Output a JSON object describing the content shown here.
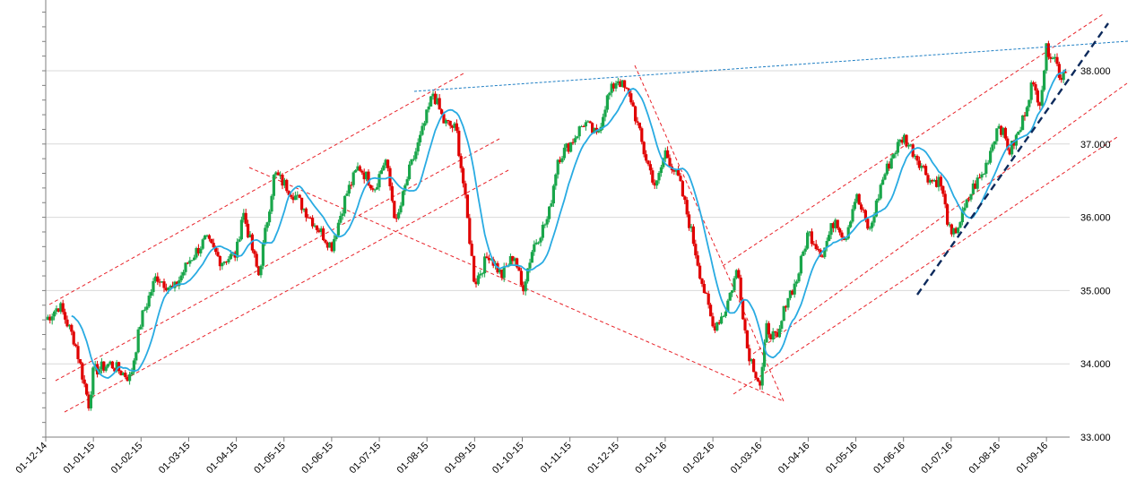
{
  "chart_data": {
    "type": "candlestick",
    "title": "",
    "xlabel": "",
    "ylabel": "",
    "ylim": [
      33000,
      39000
    ],
    "grid": true,
    "x_tick_labels": [
      "01-12-14",
      "01-01-15",
      "01-02-15",
      "01-03-15",
      "01-04-15",
      "01-05-15",
      "01-06-15",
      "01-07-15",
      "01-08-15",
      "01-09-15",
      "01-10-15",
      "01-11-15",
      "01-12-15",
      "01-01-16",
      "01-02-16",
      "01-03-16",
      "01-04-16",
      "01-05-16",
      "01-06-16",
      "01-07-16",
      "01-08-16",
      "01-09-16"
    ],
    "y_ticks": [
      {
        "value": 33000,
        "label": "33.000"
      },
      {
        "value": 34000,
        "label": "34.000"
      },
      {
        "value": 35000,
        "label": "35.000"
      },
      {
        "value": 36000,
        "label": "36.000"
      },
      {
        "value": 37000,
        "label": "37.000"
      },
      {
        "value": 38000,
        "label": "38.000"
      }
    ],
    "colors": {
      "up": "#1aa64b",
      "down": "#e00000",
      "moving_average": "#29abe2",
      "channel_lines": "#e8232a",
      "resistance_line": "#1f7fc4",
      "trend_line": "#0d2a5c",
      "grid": "#d9d9d9"
    },
    "price_path": [
      [
        "01-12-14",
        34600
      ],
      [
        "2014-12-10",
        34800
      ],
      [
        "2014-12-20",
        34300
      ],
      [
        "2014-12-29",
        33450
      ],
      [
        "01-01-15",
        33900
      ],
      [
        "2015-01-12",
        34000
      ],
      [
        "2015-01-25",
        33800
      ],
      [
        "01-02-15",
        34600
      ],
      [
        "2015-02-10",
        35200
      ],
      [
        "2015-02-20",
        35000
      ],
      [
        "01-03-15",
        35400
      ],
      [
        "2015-03-12",
        35700
      ],
      [
        "2015-03-22",
        35400
      ],
      [
        "01-04-15",
        35500
      ],
      [
        "2015-04-05",
        36100
      ],
      [
        "2015-04-15",
        35200
      ],
      [
        "2015-04-25",
        36600
      ],
      [
        "2015-05-08",
        36300
      ],
      [
        "2015-05-18",
        36000
      ],
      [
        "01-06-15",
        35600
      ],
      [
        "2015-06-10",
        36300
      ],
      [
        "2015-06-18",
        36700
      ],
      [
        "2015-06-28",
        36400
      ],
      [
        "2015-07-05",
        36800
      ],
      [
        "2015-07-12",
        35900
      ],
      [
        "2015-07-20",
        36600
      ],
      [
        "2015-07-28",
        37100
      ],
      [
        "2015-08-05",
        37700
      ],
      [
        "2015-08-12",
        37300
      ],
      [
        "2015-08-20",
        37200
      ],
      [
        "2015-08-25",
        36400
      ],
      [
        "01-09-15",
        35100
      ],
      [
        "2015-09-10",
        35500
      ],
      [
        "2015-09-18",
        35200
      ],
      [
        "2015-09-26",
        35500
      ],
      [
        "01-10-15",
        35000
      ],
      [
        "2015-10-08",
        35600
      ],
      [
        "2015-10-18",
        36000
      ],
      [
        "2015-10-24",
        36800
      ],
      [
        "01-11-15",
        37000
      ],
      [
        "2015-11-10",
        37300
      ],
      [
        "2015-11-18",
        37100
      ],
      [
        "2015-11-24",
        37600
      ],
      [
        "01-12-15",
        37900
      ],
      [
        "2015-12-10",
        37600
      ],
      [
        "2015-12-18",
        36900
      ],
      [
        "2015-12-26",
        36400
      ],
      [
        "01-01-16",
        36900
      ],
      [
        "2016-01-10",
        36500
      ],
      [
        "2016-01-18",
        35800
      ],
      [
        "2016-01-24",
        35200
      ],
      [
        "01-02-16",
        34500
      ],
      [
        "2016-02-08",
        34700
      ],
      [
        "2016-02-16",
        35300
      ],
      [
        "2016-02-22",
        34200
      ],
      [
        "01-03-16",
        33700
      ],
      [
        "2016-03-05",
        34500
      ],
      [
        "2016-03-12",
        34300
      ],
      [
        "2016-03-18",
        34900
      ],
      [
        "2016-03-24",
        35100
      ],
      [
        "01-04-16",
        35800
      ],
      [
        "2016-04-10",
        35500
      ],
      [
        "2016-04-18",
        36000
      ],
      [
        "2016-04-24",
        35700
      ],
      [
        "01-05-16",
        36300
      ],
      [
        "2016-05-10",
        35800
      ],
      [
        "2016-05-18",
        36500
      ],
      [
        "2016-05-26",
        36900
      ],
      [
        "01-06-16",
        37100
      ],
      [
        "2016-06-10",
        36800
      ],
      [
        "2016-06-18",
        36500
      ],
      [
        "2016-06-24",
        36500
      ],
      [
        "01-07-16",
        35700
      ],
      [
        "2016-07-08",
        36000
      ],
      [
        "2016-07-15",
        36400
      ],
      [
        "2016-07-22",
        36600
      ],
      [
        "01-08-16",
        37300
      ],
      [
        "2016-08-08",
        36900
      ],
      [
        "2016-08-15",
        37200
      ],
      [
        "2016-08-22",
        37800
      ],
      [
        "2016-08-28",
        37600
      ],
      [
        "01-09-16",
        38300
      ],
      [
        "2016-09-06",
        38200
      ],
      [
        "2016-09-10",
        37900
      ],
      [
        "2016-09-14",
        38100
      ]
    ]
  }
}
